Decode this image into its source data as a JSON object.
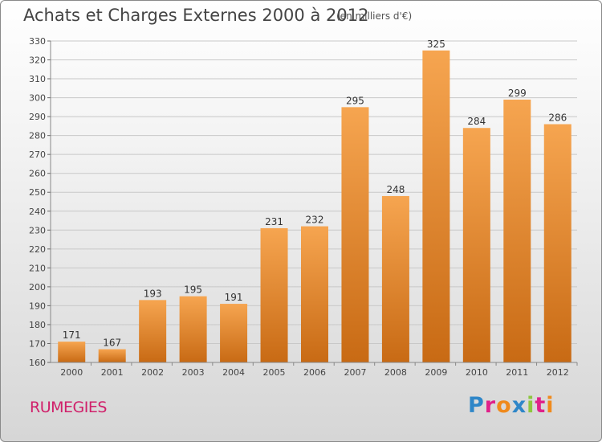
{
  "header": {
    "title": "Achats et Charges Externes 2000 à 2012",
    "subtitle": "(en milliers d'€)"
  },
  "footer": {
    "commune": "RUMEGIES",
    "logo_text": "Proxiti",
    "logo_colors": [
      "#2e86c8",
      "#e0218a",
      "#f08a1c",
      "#2e86c8",
      "#8dc63f",
      "#e0218a",
      "#f08a1c"
    ]
  },
  "chart_data": {
    "type": "bar",
    "categories": [
      "2000",
      "2001",
      "2002",
      "2003",
      "2004",
      "2005",
      "2006",
      "2007",
      "2008",
      "2009",
      "2010",
      "2011",
      "2012"
    ],
    "values": [
      171,
      167,
      193,
      195,
      191,
      231,
      232,
      295,
      248,
      325,
      284,
      299,
      286
    ],
    "ylim": [
      160,
      330
    ],
    "yticks": [
      160,
      170,
      180,
      190,
      200,
      210,
      220,
      230,
      240,
      250,
      260,
      270,
      280,
      290,
      300,
      310,
      320,
      330
    ],
    "grid": true,
    "bar_color_top": "#f6a550",
    "bar_color_bottom": "#c86a14"
  }
}
